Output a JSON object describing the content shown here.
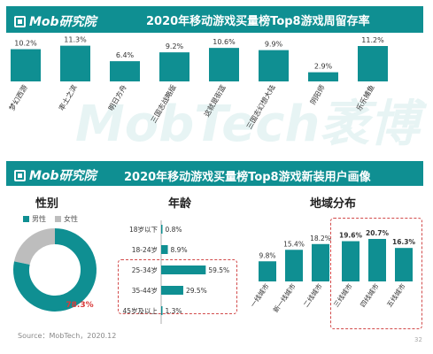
{
  "header": {
    "brand": "Mob研究院"
  },
  "watermark": "MobTech袤博",
  "footer": {
    "source": "Source：MobTech，2020.12",
    "page": "32"
  },
  "colors": {
    "teal": "#0f8f92",
    "grey": "#bdbdbd",
    "highlight": "#d93a3a"
  },
  "chart_data": [
    {
      "type": "bar",
      "title": "2020年移动游戏买量榜Top8游戏周留存率",
      "categories": [
        "梦幻西游",
        "率土之滨",
        "明日方舟",
        "三国志战略版",
        "这就是街篮",
        "三国志幻想大陆",
        "阴阳师",
        "乐乐捕鱼"
      ],
      "values": [
        10.2,
        11.3,
        6.4,
        9.2,
        10.6,
        9.9,
        2.9,
        11.2
      ],
      "value_labels": [
        "10.2%",
        "11.3%",
        "6.4%",
        "9.2%",
        "10.6%",
        "9.9%",
        "2.9%",
        "11.2%"
      ],
      "ylim": [
        0,
        14
      ]
    },
    {
      "type": "pie",
      "section_title": "性别",
      "labels": [
        "男性",
        "女性"
      ],
      "values": [
        78.3,
        21.7
      ],
      "value_labels": [
        "78.3%"
      ],
      "colors": [
        "#0f8f92",
        "#bdbdbd"
      ]
    },
    {
      "type": "bar",
      "orientation": "horizontal",
      "section_title": "年龄",
      "categories": [
        "18岁以下",
        "18-24岁",
        "25-34岁",
        "35-44岁",
        "45岁及以上"
      ],
      "values": [
        0.8,
        8.9,
        59.5,
        29.5,
        1.3
      ],
      "value_labels": [
        "0.8%",
        "8.9%",
        "59.5%",
        "29.5%",
        "1.3%"
      ],
      "xlim": [
        0,
        65
      ]
    },
    {
      "type": "bar",
      "section_title": "地域分布",
      "categories": [
        "一线城市",
        "新一线城市",
        "二线城市",
        "三线城市",
        "四线城市",
        "五线城市"
      ],
      "values": [
        9.8,
        15.4,
        18.2,
        19.6,
        20.7,
        16.3
      ],
      "value_labels": [
        "9.8%",
        "15.4%",
        "18.2%",
        "19.6%",
        "20.7%",
        "16.3%"
      ],
      "ylim": [
        0,
        25
      ]
    }
  ],
  "section_titles": {
    "band2": "2020年移动游戏买量榜Top8游戏新装用户画像"
  }
}
